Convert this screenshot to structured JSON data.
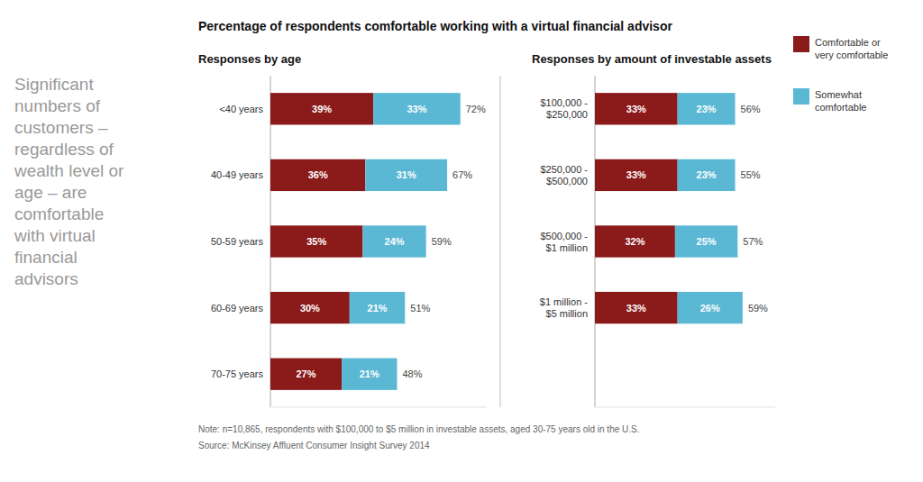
{
  "chart_data": [
    {
      "type": "bar",
      "orientation": "horizontal",
      "stacked": true,
      "data_labels": true,
      "tick_labels": "y",
      "grid": false,
      "legend": "top-right",
      "title": "Percentage of respondents comfortable working with a virtual financial advisor",
      "subtitle": "Responses by age",
      "annotations": [
        "Significant\nnumbers of\ncustomers –\nregardless of\nwealth level or\nage – are\ncomfortable\nwith virtual\nfinancial\nadvisors",
        "Note: n=10,865, respondents with $100,000 to $5 million in investable assets, aged 30-75 years old in the U.S.",
        "Source: McKinsey Affluent Consumer Insight Survey 2014"
      ],
      "categories": [
        "<40 years",
        "40-49 years",
        "50-59 years",
        "60-69 years",
        "70-75 years"
      ],
      "series": [
        {
          "name": "Comfortable or\nvery comfortable",
          "color": "#8B1A1A",
          "values": [
            39,
            36,
            35,
            30,
            27
          ],
          "value_labels": [
            "39%",
            "36%",
            "35%",
            "30%",
            "27%"
          ]
        },
        {
          "name": "Somewhat\ncomfortable",
          "color": "#5BB8D4",
          "values": [
            33,
            31,
            24,
            21,
            21
          ],
          "value_labels": [
            "33%",
            "31%",
            "24%",
            "21%",
            "21%"
          ]
        }
      ],
      "totals": [
        72,
        67,
        59,
        51,
        48
      ],
      "total_labels": [
        "72%",
        "67%",
        "59%",
        "51%",
        "48%"
      ],
      "xlim": [
        0,
        82
      ]
    },
    {
      "type": "bar",
      "orientation": "horizontal",
      "stacked": true,
      "data_labels": true,
      "tick_labels": "y",
      "grid": false,
      "title": "Responses by amount of investable assets",
      "categories": [
        "$100,000 -\n$250,000",
        "$250,000 -\n$500,000",
        "$500,000 -\n$1 million",
        "$1 million -\n$5 million"
      ],
      "series": [
        {
          "color": "#8B1A1A",
          "values": [
            33,
            33,
            32,
            33
          ],
          "value_labels": [
            "33%",
            "33%",
            "32%",
            "33%"
          ]
        },
        {
          "color": "#5BB8D4",
          "values": [
            23,
            23,
            25,
            26
          ],
          "value_labels": [
            "23%",
            "23%",
            "25%",
            "26%"
          ]
        }
      ],
      "totals": [
        56,
        55,
        57,
        59
      ],
      "total_labels": [
        "56%",
        "55%",
        "57%",
        "59%"
      ],
      "xlim": [
        0,
        72
      ]
    }
  ]
}
